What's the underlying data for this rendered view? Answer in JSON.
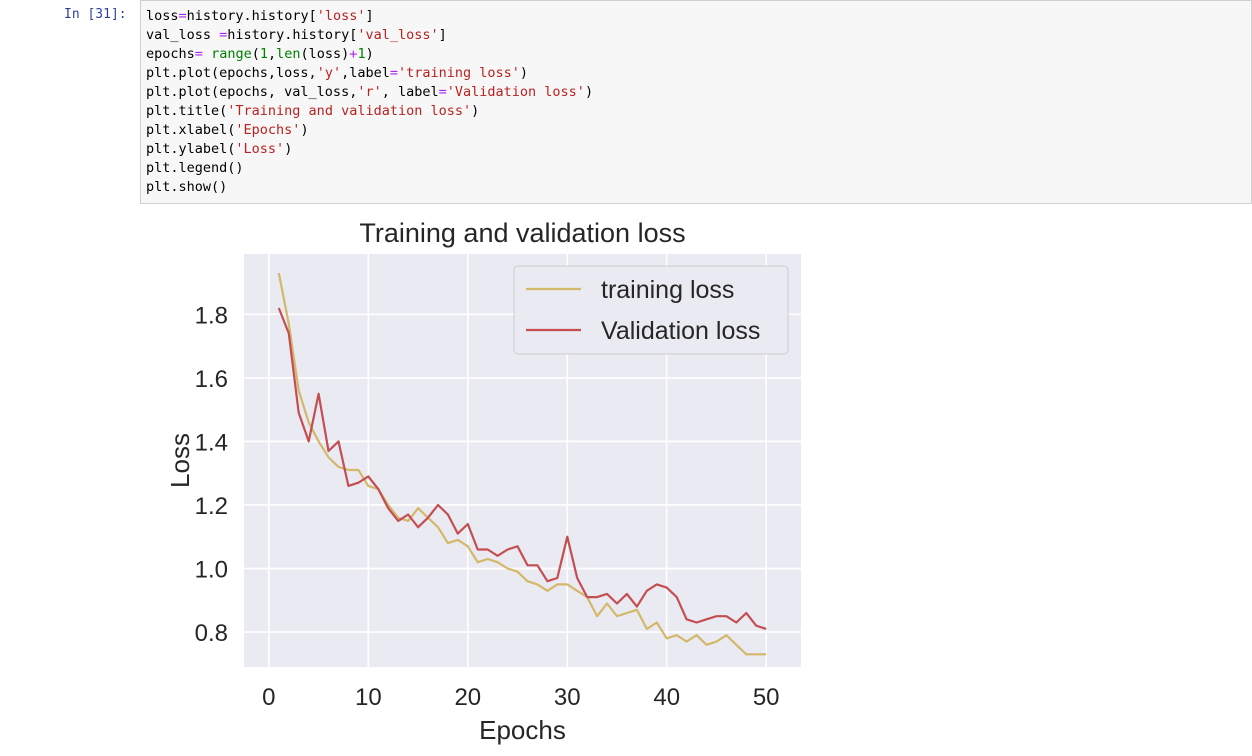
{
  "cell": {
    "prompt": "In [31]:",
    "code_lines": [
      [
        {
          "t": "loss"
        },
        {
          "t": "=",
          "c": "op"
        },
        {
          "t": "history.history["
        },
        {
          "t": "'loss'",
          "c": "str"
        },
        {
          "t": "]"
        }
      ],
      [
        {
          "t": "val_loss "
        },
        {
          "t": "=",
          "c": "op"
        },
        {
          "t": "history.history["
        },
        {
          "t": "'val_loss'",
          "c": "str"
        },
        {
          "t": "]"
        }
      ],
      [
        {
          "t": "epochs"
        },
        {
          "t": "=",
          "c": "op"
        },
        {
          "t": " "
        },
        {
          "t": "range",
          "c": "kw"
        },
        {
          "t": "("
        },
        {
          "t": "1",
          "c": "num"
        },
        {
          "t": ","
        },
        {
          "t": "len",
          "c": "kw"
        },
        {
          "t": "(loss)"
        },
        {
          "t": "+",
          "c": "op"
        },
        {
          "t": "1",
          "c": "num"
        },
        {
          "t": ")"
        }
      ],
      [
        {
          "t": "plt.plot(epochs,loss,"
        },
        {
          "t": "'y'",
          "c": "str"
        },
        {
          "t": ",label"
        },
        {
          "t": "=",
          "c": "op"
        },
        {
          "t": "'training loss'",
          "c": "str"
        },
        {
          "t": ")"
        }
      ],
      [
        {
          "t": "plt.plot(epochs, val_loss,"
        },
        {
          "t": "'r'",
          "c": "str"
        },
        {
          "t": ", label"
        },
        {
          "t": "=",
          "c": "op"
        },
        {
          "t": "'Validation loss'",
          "c": "str"
        },
        {
          "t": ")"
        }
      ],
      [
        {
          "t": "plt.title("
        },
        {
          "t": "'Training and validation loss'",
          "c": "str"
        },
        {
          "t": ")"
        }
      ],
      [
        {
          "t": "plt.xlabel("
        },
        {
          "t": "'Epochs'",
          "c": "str"
        },
        {
          "t": ")"
        }
      ],
      [
        {
          "t": "plt.ylabel("
        },
        {
          "t": "'Loss'",
          "c": "str"
        },
        {
          "t": ")"
        }
      ],
      [
        {
          "t": "plt.legend()"
        }
      ],
      [
        {
          "t": "plt.show()"
        }
      ]
    ]
  },
  "colors": {
    "prompt": "#303f9f",
    "plot_bg": "#eaeaf2",
    "grid": "#ffffff",
    "training": "#d4b86a",
    "validation": "#c44e52"
  },
  "chart_data": {
    "type": "line",
    "title": "Training and validation loss",
    "xlabel": "Epochs",
    "ylabel": "Loss",
    "xlim": [
      -2.5,
      53.5
    ],
    "ylim": [
      0.69,
      1.99
    ],
    "xticks": [
      0,
      10,
      20,
      30,
      40,
      50
    ],
    "yticks": [
      0.8,
      1.0,
      1.2,
      1.4,
      1.6,
      1.8
    ],
    "ytick_labels": [
      "0.8",
      "1.0",
      "1.2",
      "1.4",
      "1.6",
      "1.8"
    ],
    "grid": true,
    "legend_position": "top-right",
    "x": [
      1,
      2,
      3,
      4,
      5,
      6,
      7,
      8,
      9,
      10,
      11,
      12,
      13,
      14,
      15,
      16,
      17,
      18,
      19,
      20,
      21,
      22,
      23,
      24,
      25,
      26,
      27,
      28,
      29,
      30,
      31,
      32,
      33,
      34,
      35,
      36,
      37,
      38,
      39,
      40,
      41,
      42,
      43,
      44,
      45,
      46,
      47,
      48,
      49,
      50
    ],
    "series": [
      {
        "name": "training loss",
        "color": "#d4b86a",
        "values": [
          1.93,
          1.77,
          1.56,
          1.46,
          1.4,
          1.35,
          1.32,
          1.31,
          1.31,
          1.26,
          1.25,
          1.2,
          1.16,
          1.15,
          1.19,
          1.16,
          1.13,
          1.08,
          1.09,
          1.07,
          1.02,
          1.03,
          1.02,
          1.0,
          0.99,
          0.96,
          0.95,
          0.93,
          0.95,
          0.95,
          0.93,
          0.91,
          0.85,
          0.89,
          0.85,
          0.86,
          0.87,
          0.81,
          0.83,
          0.78,
          0.79,
          0.77,
          0.79,
          0.76,
          0.77,
          0.79,
          0.76,
          0.73,
          0.73,
          0.73
        ]
      },
      {
        "name": "Validation loss",
        "color": "#c44e52",
        "values": [
          1.82,
          1.74,
          1.49,
          1.4,
          1.55,
          1.37,
          1.4,
          1.26,
          1.27,
          1.29,
          1.25,
          1.19,
          1.15,
          1.17,
          1.13,
          1.16,
          1.2,
          1.17,
          1.11,
          1.14,
          1.06,
          1.06,
          1.04,
          1.06,
          1.07,
          1.01,
          1.01,
          0.96,
          0.97,
          1.1,
          0.97,
          0.91,
          0.91,
          0.92,
          0.89,
          0.92,
          0.88,
          0.93,
          0.95,
          0.94,
          0.91,
          0.84,
          0.83,
          0.84,
          0.85,
          0.85,
          0.83,
          0.86,
          0.82,
          0.81
        ]
      }
    ]
  }
}
